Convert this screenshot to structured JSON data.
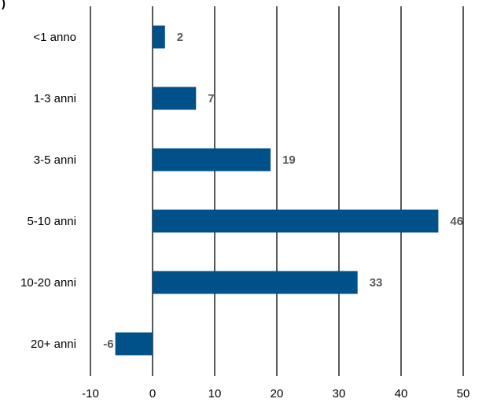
{
  "partial_title": ")",
  "chart_data": {
    "type": "bar",
    "orientation": "horizontal",
    "categories": [
      "<1 anno",
      "1-3 anni",
      "3-5 anni",
      "5-10 anni",
      "10-20 anni",
      "20+ anni"
    ],
    "values": [
      2,
      7,
      19,
      46,
      33,
      -6
    ],
    "value_labels": [
      "2",
      "7",
      "19",
      "46",
      "33",
      "-6"
    ],
    "x_ticks": [
      -10,
      0,
      10,
      20,
      30,
      40,
      50
    ],
    "x_tick_labels": [
      "-10",
      "0",
      "10",
      "20",
      "30",
      "40",
      "50"
    ],
    "xlim": [
      -10,
      50
    ],
    "grid": true,
    "bar_color": "#00518A",
    "value_label_color": "#595959"
  }
}
